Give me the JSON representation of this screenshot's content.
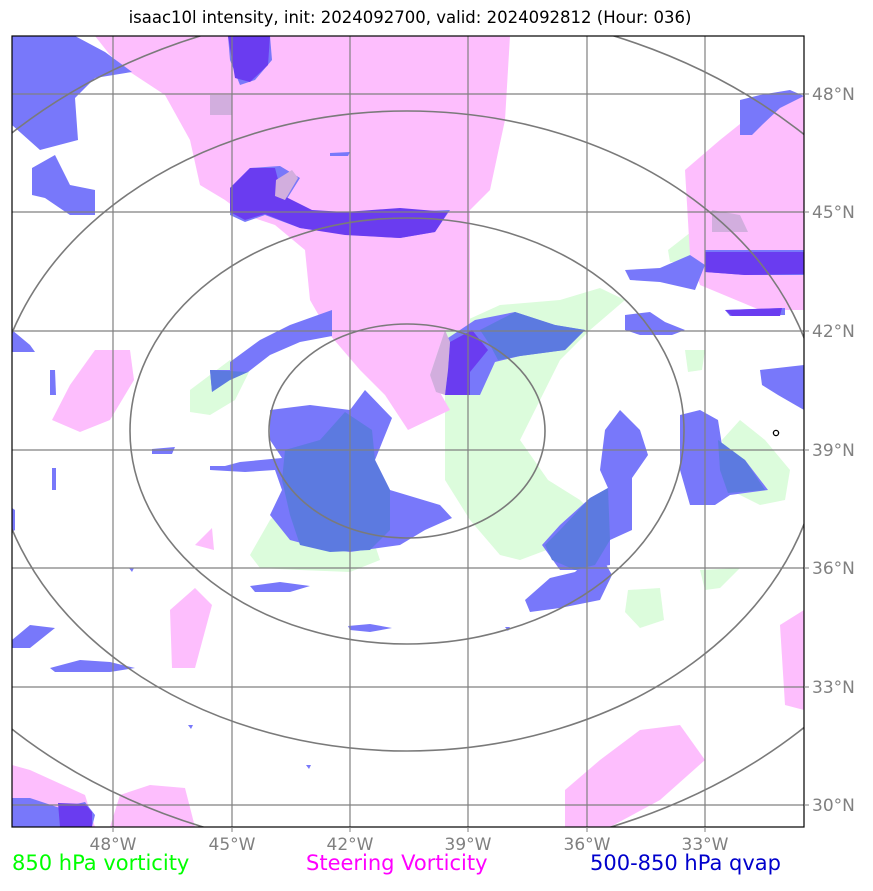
{
  "title": "isaac10l intensity, init: 2024092700, valid: 2024092812 (Hour: 036)",
  "lon_labels": [
    "48°W",
    "45°W",
    "42°W",
    "39°W",
    "36°W",
    "33°W"
  ],
  "lat_labels": [
    "48°N",
    "45°N",
    "42°N",
    "39°N",
    "36°N",
    "33°N",
    "30°N"
  ],
  "legend": [
    {
      "label": "850 hPa vorticity",
      "color": "#00ff00"
    },
    {
      "label": "Steering Vorticity",
      "color": "#ff00ff"
    },
    {
      "label": "500-850 hPa qvap",
      "color": "#0000cc"
    }
  ],
  "colors": {
    "vorticity_850": "#dcfcdc",
    "steering_vorticity": "#fdbefd",
    "qvap": "#7878fa",
    "qvap_dark": "#5c7ae0",
    "qvap_overlap": "#6a3cf0",
    "grid": "#808080",
    "range_rings": "#7a7a7a"
  },
  "range_rings": 4,
  "storm_marker": "small-circle"
}
